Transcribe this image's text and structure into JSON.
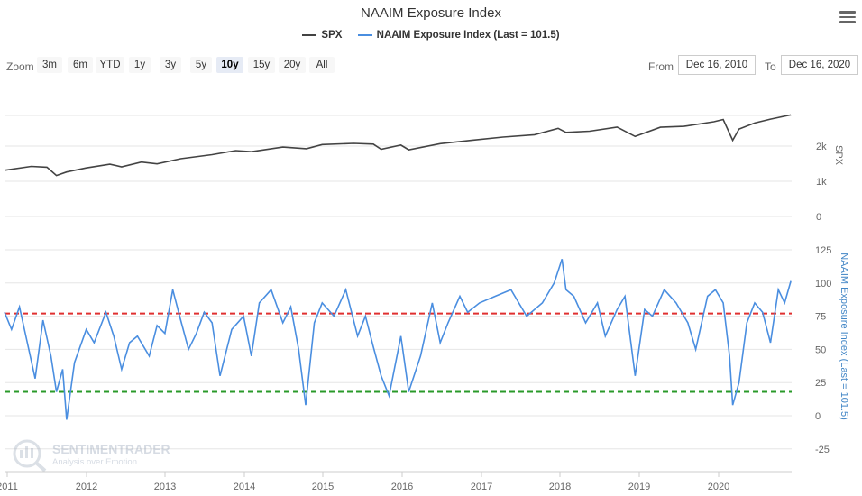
{
  "title": "NAAIM Exposure Index",
  "menu_icon": "hamburger-menu-icon",
  "legend": [
    {
      "name": "SPX",
      "color": "#434343"
    },
    {
      "name": "NAAIM Exposure Index (Last = 101.5)",
      "color": "#4a8ee0"
    }
  ],
  "range_selector": {
    "zoom_label": "Zoom",
    "buttons": [
      "3m",
      "6m",
      "YTD",
      "1y",
      "3y",
      "5y",
      "10y",
      "15y",
      "20y",
      "All"
    ],
    "active": "10y",
    "from_label": "From",
    "from_value": "Dec 16, 2010",
    "to_label": "To",
    "to_value": "Dec 16, 2020"
  },
  "watermark": {
    "name": "SENTIMENTRADER",
    "tagline": "Analysis over Emotion"
  },
  "chart_data": [
    {
      "type": "line",
      "name": "SPX",
      "y_axis_title": "SPX",
      "y_scale": "log",
      "y_ticks": [
        "0",
        "1k",
        "2k"
      ],
      "color": "#434343",
      "x": [
        2010.96,
        2011.3,
        2011.5,
        2011.62,
        2011.75,
        2012.0,
        2012.3,
        2012.45,
        2012.7,
        2012.9,
        2013.2,
        2013.6,
        2013.9,
        2014.1,
        2014.5,
        2014.8,
        2015.0,
        2015.4,
        2015.65,
        2015.75,
        2016.0,
        2016.1,
        2016.5,
        2016.9,
        2017.3,
        2017.7,
        2018.0,
        2018.1,
        2018.4,
        2018.75,
        2018.98,
        2019.3,
        2019.6,
        2019.98,
        2020.1,
        2020.22,
        2020.3,
        2020.5,
        2020.7,
        2020.96
      ],
      "y": [
        1242,
        1340,
        1320,
        1120,
        1200,
        1300,
        1400,
        1330,
        1460,
        1410,
        1560,
        1690,
        1830,
        1790,
        1960,
        1900,
        2060,
        2110,
        2080,
        1880,
        2040,
        1860,
        2100,
        2240,
        2390,
        2500,
        2840,
        2620,
        2680,
        2910,
        2420,
        2900,
        2950,
        3230,
        3380,
        2240,
        2800,
        3150,
        3400,
        3700
      ]
    },
    {
      "type": "line",
      "name": "NAAIM Exposure Index (Last = 101.5)",
      "y_axis_title": "NAAIM Exposure Index (Last = 101.5)",
      "ylim": [
        -25,
        125
      ],
      "y_ticks": [
        -25,
        0,
        25,
        50,
        75,
        100,
        125
      ],
      "color": "#4a8ee0",
      "x": [
        2010.96,
        2011.05,
        2011.15,
        2011.25,
        2011.35,
        2011.45,
        2011.55,
        2011.62,
        2011.7,
        2011.75,
        2011.85,
        2012.0,
        2012.1,
        2012.25,
        2012.35,
        2012.45,
        2012.55,
        2012.65,
        2012.8,
        2012.9,
        2013.0,
        2013.1,
        2013.2,
        2013.3,
        2013.4,
        2013.5,
        2013.6,
        2013.7,
        2013.85,
        2014.0,
        2014.1,
        2014.2,
        2014.35,
        2014.5,
        2014.6,
        2014.7,
        2014.79,
        2014.9,
        2015.0,
        2015.15,
        2015.3,
        2015.45,
        2015.55,
        2015.65,
        2015.75,
        2015.85,
        2016.0,
        2016.1,
        2016.25,
        2016.4,
        2016.5,
        2016.6,
        2016.75,
        2016.85,
        2017.0,
        2017.2,
        2017.4,
        2017.6,
        2017.8,
        2017.95,
        2018.05,
        2018.1,
        2018.2,
        2018.35,
        2018.5,
        2018.6,
        2018.75,
        2018.85,
        2018.98,
        2019.1,
        2019.2,
        2019.35,
        2019.5,
        2019.65,
        2019.75,
        2019.9,
        2020.0,
        2020.1,
        2020.18,
        2020.22,
        2020.3,
        2020.4,
        2020.5,
        2020.6,
        2020.7,
        2020.8,
        2020.88,
        2020.96
      ],
      "y": [
        78,
        65,
        82,
        55,
        28,
        72,
        45,
        18,
        35,
        -3,
        40,
        65,
        55,
        78,
        60,
        35,
        55,
        60,
        45,
        68,
        62,
        95,
        72,
        50,
        62,
        78,
        70,
        30,
        65,
        75,
        45,
        85,
        95,
        70,
        82,
        50,
        8,
        70,
        85,
        75,
        95,
        60,
        75,
        52,
        30,
        15,
        60,
        18,
        45,
        85,
        55,
        70,
        90,
        78,
        85,
        90,
        95,
        75,
        85,
        100,
        118,
        95,
        90,
        70,
        85,
        60,
        80,
        90,
        30,
        80,
        75,
        95,
        85,
        70,
        50,
        90,
        95,
        85,
        45,
        8,
        25,
        70,
        85,
        78,
        55,
        95,
        85,
        101.5
      ]
    }
  ],
  "reference_lines": [
    {
      "name": "upper-threshold-line",
      "value": 77,
      "color": "#e03030"
    },
    {
      "name": "lower-threshold-line",
      "value": 18,
      "color": "#2a9a2a"
    }
  ],
  "x_axis": {
    "labels": [
      "2011",
      "2012",
      "2013",
      "2014",
      "2015",
      "2016",
      "2017",
      "2018",
      "2019",
      "2020"
    ]
  }
}
